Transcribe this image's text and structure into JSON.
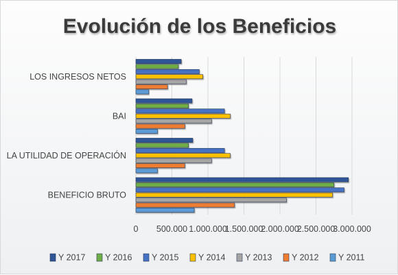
{
  "chart_data": {
    "type": "bar",
    "orientation": "horizontal",
    "title": "Evolución de los Beneficios",
    "categories": [
      "BENEFICIO BRUTO",
      "LA UTILIDAD DE OPERACIÓN",
      "BAI",
      "LOS INGRESOS NETOS"
    ],
    "x_ticks": [
      "0",
      "500.000",
      "1.000.000",
      "1.500.000",
      "2.000.000",
      "2.500.000",
      "3.000.000"
    ],
    "xlim": [
      0,
      3000000
    ],
    "grid": true,
    "legend_position": "bottom",
    "series": [
      {
        "name": "Y 2017",
        "color": "#2f5597",
        "values": [
          2950000,
          790000,
          780000,
          630000
        ]
      },
      {
        "name": "Y 2016",
        "color": "#70ad47",
        "values": [
          2750000,
          730000,
          730000,
          590000
        ]
      },
      {
        "name": "Y 2015",
        "color": "#4472c4",
        "values": [
          2890000,
          1230000,
          1230000,
          880000
        ]
      },
      {
        "name": "Y 2014",
        "color": "#ffc000",
        "values": [
          2730000,
          1310000,
          1310000,
          930000
        ]
      },
      {
        "name": "Y 2013",
        "color": "#a5a5a5",
        "values": [
          2090000,
          1050000,
          1050000,
          700000
        ]
      },
      {
        "name": "Y 2012",
        "color": "#ed7d31",
        "values": [
          1370000,
          680000,
          680000,
          440000
        ]
      },
      {
        "name": "Y 2011",
        "color": "#5b9bd5",
        "values": [
          810000,
          300000,
          300000,
          180000
        ]
      }
    ]
  }
}
